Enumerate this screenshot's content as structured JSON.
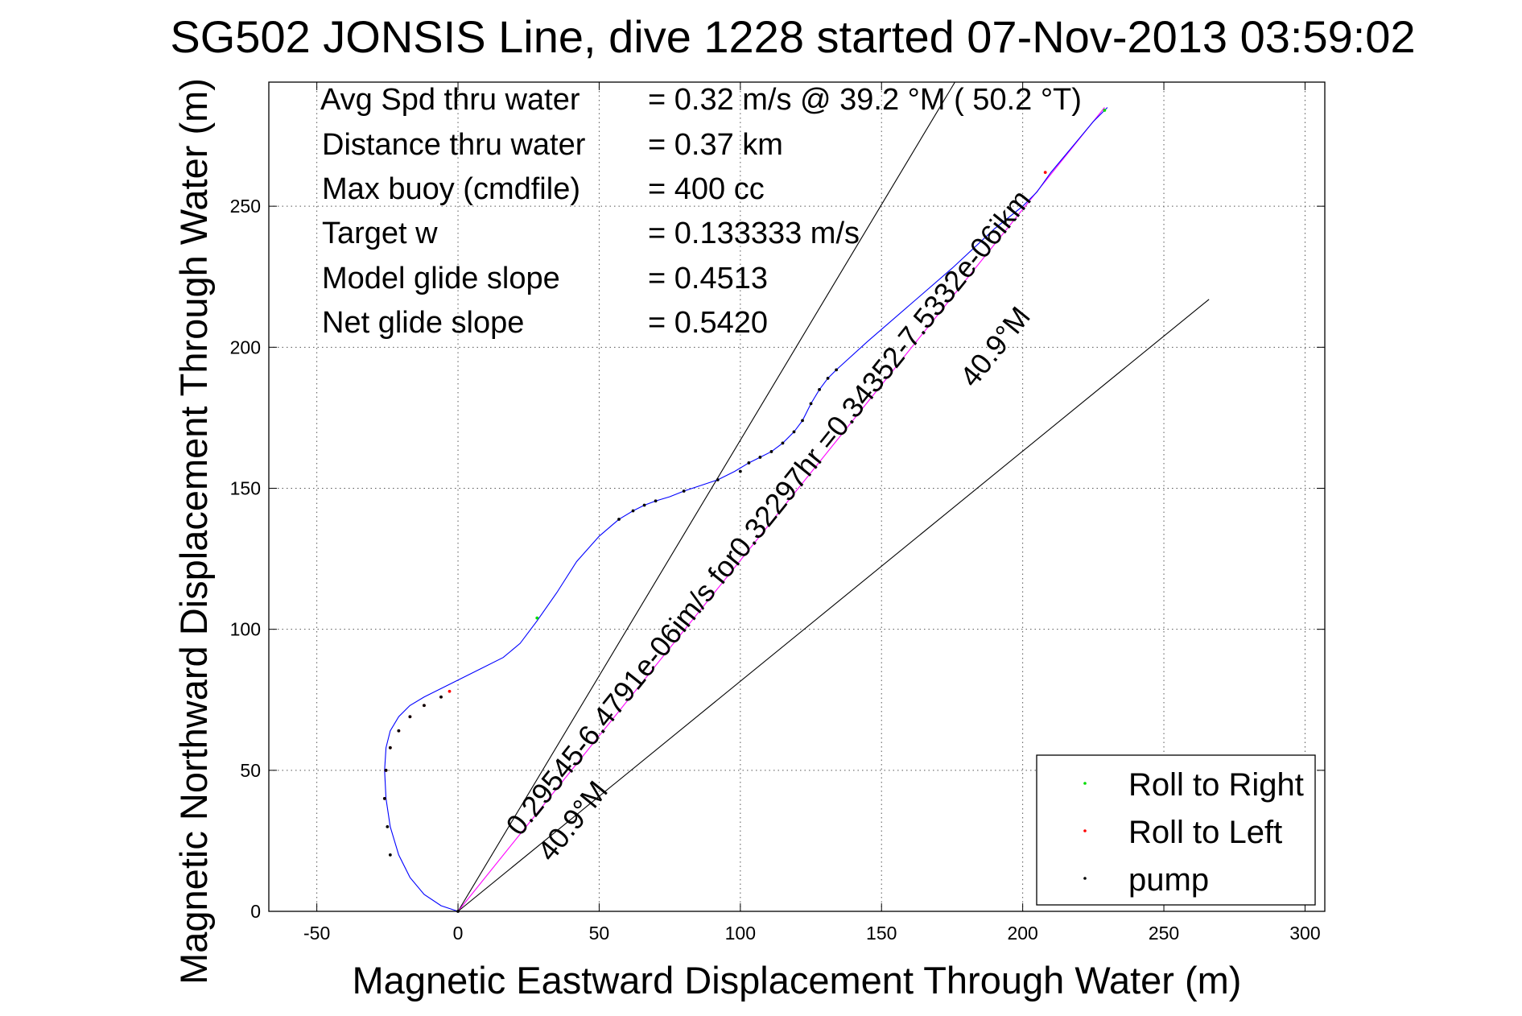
{
  "chart_data": {
    "type": "line",
    "title": "SG502 JONSIS Line, dive 1228 started 07-Nov-2013 03:59:02",
    "xlabel": "Magnetic Eastward Displacement Through Water (m)",
    "ylabel": "Magnetic Northward Displacement Through Water (m)",
    "xlim": [
      -67,
      307
    ],
    "ylim": [
      0,
      294
    ],
    "xticks": [
      -50,
      0,
      50,
      100,
      150,
      200,
      250,
      300
    ],
    "yticks": [
      0,
      50,
      100,
      150,
      200,
      250
    ],
    "grid": true,
    "legend_position": "bottom-right",
    "annotations": [
      {
        "label": "Avg Spd thru water",
        "value": "=  0.32 m/s @  39.2 °M ( 50.2 °T)"
      },
      {
        "label": "Distance thru water",
        "value": "=  0.37 km"
      },
      {
        "label": "Max buoy (cmdfile)",
        "value": "= 400 cc"
      },
      {
        "label": "Target w",
        "value": "= 0.133333 m/s"
      },
      {
        "label": "Model glide slope",
        "value": "= 0.4513"
      },
      {
        "label": "Net glide slope",
        "value": "= 0.5420"
      }
    ],
    "slope_labels": {
      "current": "0.29545-6.4791e-06im/s for0.32297hr =0.34352-7.5332e-06ikm",
      "heading_lower": "40.9°M",
      "heading_upper": "40.9°M"
    },
    "series": [
      {
        "name": "track",
        "color": "#0000ff",
        "x": [
          0,
          -6,
          -12,
          -17,
          -21,
          -24,
          -25.5,
          -26,
          -25.5,
          -24,
          -21,
          -17,
          -12,
          -6,
          0,
          8,
          16,
          22,
          28,
          35,
          42,
          50,
          57,
          62,
          66,
          70,
          75,
          80,
          86,
          92,
          98,
          103,
          107,
          111,
          115,
          119,
          122,
          125,
          128,
          131,
          134,
          145,
          160,
          175,
          190,
          200,
          205,
          210,
          215,
          220,
          225,
          230
        ],
        "y": [
          0,
          2,
          6,
          12,
          20,
          30,
          40,
          50,
          58,
          64,
          69,
          73,
          76,
          79,
          82,
          86,
          90,
          95,
          103,
          113,
          124,
          133,
          139,
          142,
          144,
          145.5,
          147,
          149,
          151,
          153,
          156,
          159,
          161,
          163,
          166,
          170,
          174,
          180,
          185,
          189,
          192,
          202,
          215,
          228,
          242,
          250,
          255,
          262,
          268,
          274,
          280,
          285
        ]
      },
      {
        "name": "Roll to Right",
        "color": "#00dd00",
        "x": [
          28,
          229
        ],
        "y": [
          104,
          284
        ]
      },
      {
        "name": "Roll to Left",
        "color": "#ff0000",
        "x": [
          -26,
          -25.5,
          -24,
          -21,
          -17,
          -12,
          -6,
          -3,
          208
        ],
        "y": [
          40,
          50,
          58,
          64,
          69,
          73,
          76,
          78,
          262
        ]
      },
      {
        "name": "pump",
        "color": "#000000",
        "x": [
          -24,
          -25,
          -26,
          -25.5,
          -24,
          -21,
          -17,
          -12,
          -6,
          0,
          57,
          62,
          66,
          70,
          80,
          92,
          100,
          103,
          107,
          111,
          115,
          119,
          122,
          125,
          128,
          131,
          134
        ],
        "y": [
          20,
          30,
          40,
          50,
          58,
          64,
          69,
          73,
          76,
          0,
          139,
          142,
          144,
          145.5,
          149,
          153,
          156,
          159,
          161,
          163,
          166,
          170,
          174,
          180,
          185,
          189,
          192
        ]
      }
    ],
    "reference_lines": [
      {
        "name": "heading",
        "x": [
          0,
          176
        ],
        "y": [
          0,
          294
        ],
        "color": "#000000"
      },
      {
        "name": "net_current",
        "x": [
          0,
          229
        ],
        "y": [
          0,
          285
        ],
        "color": "#ff00ff"
      },
      {
        "name": "heading_offset",
        "x": [
          0,
          266
        ],
        "y": [
          0,
          217
        ],
        "color": "#000000"
      }
    ],
    "legend": [
      {
        "label": "Roll to Right",
        "color": "#00dd00"
      },
      {
        "label": "Roll to Left",
        "color": "#ff0000"
      },
      {
        "label": "pump",
        "color": "#000000"
      }
    ]
  }
}
